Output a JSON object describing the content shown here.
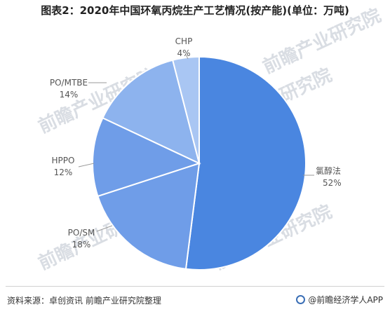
{
  "title": "图表2：2020年中国环氧丙烷生产工艺情况(按产能)(单位：万吨)",
  "watermark": {
    "text": "前瞻产业研究院"
  },
  "footer": {
    "source": "资料来源：卓创资讯 前瞻产业研究院整理",
    "brand": "@前瞻经济学人APP"
  },
  "colors": {
    "primary": "#4a86e0",
    "secondary": "#6f9de8",
    "tertiary": "#8db3ee",
    "light": "#a9c6f3"
  },
  "chart_data": {
    "type": "pie",
    "title": "图表2：2020年中国环氧丙烷生产工艺情况(按产能)(单位：万吨)",
    "unit": "万吨",
    "slices": [
      {
        "label": "氯醇法",
        "value": 52,
        "pct_label": "52%"
      },
      {
        "label": "PO/SM",
        "value": 18,
        "pct_label": "18%"
      },
      {
        "label": "HPPO",
        "value": 12,
        "pct_label": "12%"
      },
      {
        "label": "PO/MTBE",
        "value": 14,
        "pct_label": "14%"
      },
      {
        "label": "CHP",
        "value": 4,
        "pct_label": "4%"
      }
    ]
  }
}
